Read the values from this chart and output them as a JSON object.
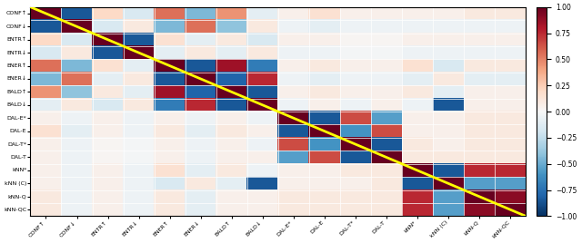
{
  "labels": [
    "CONF↑",
    "CONF↓",
    "ENTR↑",
    "ENTR↓",
    "ENER↑",
    "ENER↓",
    "BALD↑",
    "BALD↓",
    "DAL-E*",
    "DAL-E",
    "DAL-T*",
    "DAL-T",
    "kNN*",
    "kNN (C)",
    "kNN-Q",
    "kNN-QC"
  ],
  "matrix": [
    [
      1.0,
      -0.85,
      0.2,
      -0.15,
      0.55,
      -0.45,
      0.45,
      -0.1,
      0.05,
      0.15,
      0.05,
      0.05,
      0.05,
      0.05,
      0.1,
      0.1
    ],
    [
      -0.85,
      1.0,
      -0.15,
      0.1,
      -0.45,
      0.55,
      -0.4,
      0.1,
      -0.05,
      -0.1,
      -0.05,
      -0.05,
      -0.05,
      -0.05,
      -0.05,
      -0.05
    ],
    [
      0.2,
      -0.15,
      1.0,
      -0.85,
      0.15,
      -0.1,
      0.1,
      -0.15,
      0.05,
      0.05,
      0.02,
      0.02,
      0.05,
      0.05,
      0.05,
      0.05
    ],
    [
      -0.15,
      0.1,
      -0.85,
      1.0,
      -0.1,
      0.1,
      -0.1,
      0.1,
      -0.05,
      -0.05,
      -0.02,
      -0.02,
      -0.05,
      -0.05,
      -0.05,
      -0.05
    ],
    [
      0.55,
      -0.45,
      0.15,
      -0.1,
      1.0,
      -0.85,
      0.85,
      -0.7,
      0.05,
      0.1,
      0.05,
      0.05,
      0.15,
      -0.15,
      0.1,
      0.1
    ],
    [
      -0.45,
      0.55,
      -0.1,
      0.1,
      -0.85,
      1.0,
      -0.8,
      0.75,
      -0.05,
      -0.1,
      -0.05,
      -0.05,
      -0.1,
      0.1,
      -0.1,
      -0.1
    ],
    [
      0.45,
      -0.4,
      0.1,
      -0.1,
      0.85,
      -0.8,
      1.0,
      -0.85,
      0.05,
      0.1,
      0.05,
      0.05,
      0.1,
      -0.1,
      0.05,
      0.05
    ],
    [
      -0.1,
      0.1,
      -0.15,
      0.1,
      -0.7,
      0.75,
      -0.85,
      1.0,
      -0.05,
      0.05,
      -0.05,
      0.05,
      -0.05,
      -0.85,
      0.05,
      0.05
    ],
    [
      0.05,
      -0.05,
      0.05,
      -0.05,
      0.05,
      -0.05,
      0.05,
      -0.05,
      1.0,
      -0.85,
      0.65,
      -0.55,
      0.05,
      0.05,
      0.1,
      0.1
    ],
    [
      0.15,
      -0.1,
      0.05,
      -0.05,
      0.1,
      -0.1,
      0.1,
      0.05,
      -0.85,
      1.0,
      -0.6,
      0.65,
      0.05,
      0.05,
      0.1,
      0.1
    ],
    [
      0.05,
      -0.05,
      0.02,
      -0.02,
      0.05,
      -0.05,
      0.05,
      -0.05,
      0.65,
      -0.6,
      1.0,
      -0.85,
      0.1,
      0.05,
      0.1,
      0.1
    ],
    [
      0.05,
      -0.05,
      0.02,
      -0.02,
      0.05,
      -0.05,
      0.05,
      0.05,
      -0.55,
      0.65,
      -0.85,
      1.0,
      0.1,
      0.1,
      0.1,
      0.1
    ],
    [
      0.05,
      -0.05,
      0.05,
      -0.05,
      0.15,
      -0.1,
      0.1,
      -0.05,
      0.05,
      0.05,
      0.1,
      0.1,
      1.0,
      -0.85,
      0.75,
      0.75
    ],
    [
      0.05,
      -0.05,
      0.05,
      -0.05,
      -0.15,
      0.1,
      -0.1,
      -0.85,
      0.05,
      0.05,
      0.05,
      0.1,
      -0.85,
      1.0,
      -0.55,
      -0.55
    ],
    [
      0.1,
      -0.05,
      0.05,
      -0.05,
      0.1,
      -0.1,
      0.05,
      0.05,
      0.1,
      0.1,
      0.1,
      0.1,
      0.75,
      -0.55,
      1.0,
      0.9
    ],
    [
      0.1,
      -0.05,
      0.05,
      -0.05,
      0.1,
      -0.1,
      0.05,
      0.05,
      0.1,
      0.1,
      0.1,
      0.1,
      0.75,
      -0.55,
      0.9,
      1.0
    ]
  ],
  "cmap": "RdBu_r",
  "vmin": -1.0,
  "vmax": 1.0,
  "colorbar_ticks": [
    1.0,
    0.75,
    0.5,
    0.25,
    0.0,
    -0.25,
    -0.5,
    -0.75,
    -1.0
  ],
  "diagonal_color": "yellow",
  "diagonal_linewidth": 2.0,
  "figsize": [
    6.4,
    2.68
  ],
  "dpi": 100,
  "tick_fontsize": 4.5,
  "colorbar_fontsize": 5.5
}
